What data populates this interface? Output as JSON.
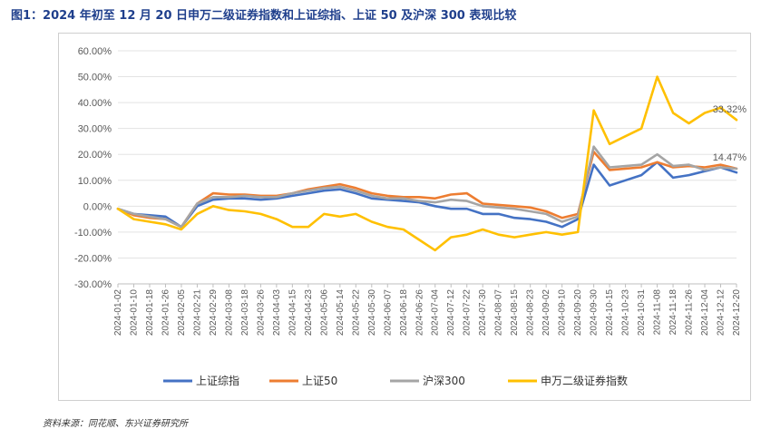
{
  "title": "图1：2024 年初至 12 月 20 日申万二级证券指数和上证综指、上证 50 及沪深 300 表现比较",
  "source": "资料来源：同花顺、东兴证券研究所",
  "chart_data": {
    "type": "line",
    "y_ticks": [
      "60.00%",
      "50.00%",
      "40.00%",
      "30.00%",
      "20.00%",
      "10.00%",
      "0.00%",
      "-10.00%",
      "-20.00%",
      "-30.00%"
    ],
    "ylim": [
      -30,
      60
    ],
    "x_ticks": [
      "2024-01-02",
      "2024-01-10",
      "2024-01-18",
      "2024-01-26",
      "2024-02-05",
      "2024-02-21",
      "2024-02-29",
      "2024-03-08",
      "2024-03-18",
      "2024-03-26",
      "2024-04-03",
      "2024-04-15",
      "2024-04-23",
      "2024-05-06",
      "2024-05-14",
      "2024-05-22",
      "2024-05-30",
      "2024-06-07",
      "2024-06-18",
      "2024-06-26",
      "2024-07-04",
      "2024-07-12",
      "2024-07-22",
      "2024-07-30",
      "2024-08-07",
      "2024-08-15",
      "2024-08-23",
      "2024-09-02",
      "2024-09-10",
      "2024-09-20",
      "2024-09-30",
      "2024-10-15",
      "2024-10-23",
      "2024-10-31",
      "2024-11-08",
      "2024-11-18",
      "2024-11-26",
      "2024-12-04",
      "2024-12-12",
      "2024-12-20"
    ],
    "series": [
      {
        "name": "上证综指",
        "color": "#4472c4",
        "values": [
          -1,
          -3,
          -3.5,
          -4,
          -8,
          0,
          2.5,
          3,
          3,
          2.5,
          3,
          4,
          5,
          6,
          6.5,
          5,
          3,
          2.5,
          2,
          1.5,
          0,
          -1,
          -1,
          -3,
          -3,
          -4.5,
          -5,
          -6,
          -8,
          -5,
          16,
          8,
          10,
          12,
          17,
          11,
          12,
          13.5,
          15,
          13
        ]
      },
      {
        "name": "上证50",
        "color": "#ed7d31",
        "values": [
          -1,
          -3.5,
          -4.5,
          -5,
          -8,
          1,
          5,
          4.5,
          4.5,
          4,
          4,
          5,
          6.5,
          7.5,
          8.5,
          7,
          5,
          4,
          3.5,
          3.5,
          3,
          4.5,
          5,
          1,
          0.5,
          0,
          -0.5,
          -2,
          -4.5,
          -3,
          21,
          14,
          14.5,
          15,
          17,
          15,
          15.5,
          15,
          16,
          14.5
        ]
      },
      {
        "name": "沪深300",
        "color": "#a5a5a5",
        "values": [
          -1,
          -3,
          -4,
          -5,
          -8,
          1,
          3.5,
          3.5,
          4,
          3.5,
          3.5,
          5,
          6,
          7,
          7.5,
          6,
          4,
          3,
          3,
          2,
          1.5,
          2.5,
          2,
          0,
          -0.5,
          -1,
          -2,
          -3,
          -6,
          -4,
          23,
          15,
          15.5,
          16,
          20,
          15.5,
          16,
          14,
          15,
          14.47
        ]
      },
      {
        "name": "申万二级证券指数",
        "color": "#ffc000",
        "values": [
          -1,
          -5,
          -6,
          -7,
          -9,
          -3,
          0,
          -1.5,
          -2,
          -3,
          -5,
          -8,
          -8,
          -3,
          -4,
          -3,
          -6,
          -8,
          -9,
          -13,
          -17,
          -12,
          -11,
          -9,
          -11,
          -12,
          -11,
          -10,
          -11,
          -10,
          37,
          24,
          27,
          30,
          50,
          36,
          32,
          36,
          38,
          33.32
        ]
      }
    ],
    "annotations": [
      "33.32%",
      "14.47%"
    ],
    "legend": {
      "position": "bottom"
    }
  }
}
